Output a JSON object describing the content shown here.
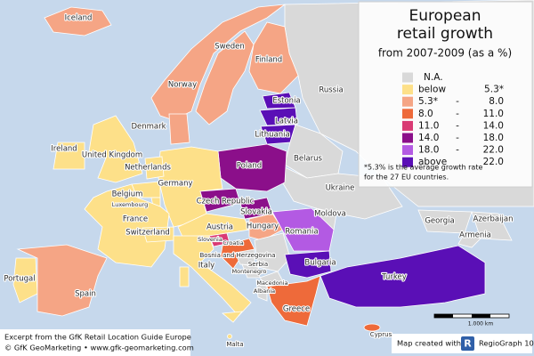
{
  "title_lines": [
    "European",
    "retail growth"
  ],
  "subtitle": "from 2007-2009 (as a %)",
  "legend": {
    "items": [
      {
        "label": "N.A.",
        "color": "#d9d9d9"
      },
      {
        "from": "below",
        "to": "5.3*",
        "color": "#fde089"
      },
      {
        "from": "5.3*",
        "separator": "-",
        "to": "8.0",
        "color": "#f5a585"
      },
      {
        "from": "8.0",
        "separator": "-",
        "to": "11.0",
        "color": "#ee6a3a"
      },
      {
        "from": "11.0",
        "separator": "-",
        "to": "14.0",
        "color": "#d93a74"
      },
      {
        "from": "14.0",
        "separator": "-",
        "to": "18.0",
        "color": "#8b0f8a"
      },
      {
        "from": "18.0",
        "separator": "-",
        "to": "22.0",
        "color": "#b35ae3"
      },
      {
        "from": "above",
        "to": "22.0",
        "color": "#5a0fb6"
      }
    ],
    "note_lines": [
      "*5.3% is the average growth rate",
      "for the 27 EU countries."
    ]
  },
  "countries": [
    {
      "name": "Iceland",
      "class": 2
    },
    {
      "name": "Norway",
      "class": 2
    },
    {
      "name": "Sweden",
      "class": 2
    },
    {
      "name": "Finland",
      "class": 2
    },
    {
      "name": "Russia",
      "class": 0
    },
    {
      "name": "Estonia",
      "class": 7
    },
    {
      "name": "Latvia",
      "class": 7
    },
    {
      "name": "Lithuania",
      "class": 7
    },
    {
      "name": "Denmark",
      "class": 2
    },
    {
      "name": "Ireland",
      "class": 1
    },
    {
      "name": "United Kingdom",
      "class": 1
    },
    {
      "name": "Netherlands",
      "class": 1
    },
    {
      "name": "Belarus",
      "class": 0
    },
    {
      "name": "Poland",
      "class": 5
    },
    {
      "name": "Germany",
      "class": 1
    },
    {
      "name": "Belgium",
      "class": 1
    },
    {
      "name": "Luxembourg",
      "class": 1
    },
    {
      "name": "Czech Republic",
      "class": 5
    },
    {
      "name": "Slovakia",
      "class": 5
    },
    {
      "name": "Ukraine",
      "class": 0
    },
    {
      "name": "Moldova",
      "class": 0
    },
    {
      "name": "France",
      "class": 1
    },
    {
      "name": "Switzerland",
      "class": 1
    },
    {
      "name": "Austria",
      "class": 1
    },
    {
      "name": "Hungary",
      "class": 2
    },
    {
      "name": "Romania",
      "class": 6
    },
    {
      "name": "Slovenia",
      "class": 4
    },
    {
      "name": "Croatia",
      "class": 3
    },
    {
      "name": "Bosnia and Herzegovina",
      "class": 0
    },
    {
      "name": "Serbia",
      "class": 0
    },
    {
      "name": "Montenegro",
      "class": 0
    },
    {
      "name": "Bulgaria",
      "class": 7
    },
    {
      "name": "Italy",
      "class": 1
    },
    {
      "name": "Macedonia",
      "class": 0
    },
    {
      "name": "Albania",
      "class": 0
    },
    {
      "name": "Georgia",
      "class": 0
    },
    {
      "name": "Azerbaijan",
      "class": 0
    },
    {
      "name": "Armenia",
      "class": 0
    },
    {
      "name": "Turkey",
      "class": 7
    },
    {
      "name": "Portugal",
      "class": 1
    },
    {
      "name": "Spain",
      "class": 2
    },
    {
      "name": "Greece",
      "class": 3
    },
    {
      "name": "Cyprus",
      "class": 3
    },
    {
      "name": "Malta",
      "class": 1
    }
  ],
  "scale_label": "1.000 km",
  "footer": {
    "lines": [
      "Excerpt from the GfK Retail Location Guide Europe",
      "© GfK GeoMarketing • www.gfk-geomarketing.com"
    ],
    "credit": "Map created with",
    "logo": "R",
    "product": "RegioGraph 10"
  }
}
